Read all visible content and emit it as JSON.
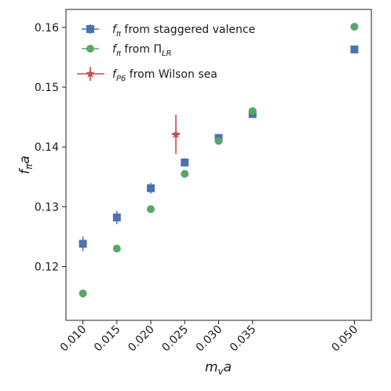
{
  "chart_data": {
    "type": "scatter",
    "title": "",
    "xlabel": "m_v a",
    "ylabel": "f_π a",
    "xlim": [
      0.0075,
      0.0525
    ],
    "ylim": [
      0.111,
      0.163
    ],
    "x_ticks": [
      0.01,
      0.015,
      0.02,
      0.025,
      0.03,
      0.035,
      0.05
    ],
    "x_tick_labels": [
      "0.010",
      "0.015",
      "0.020",
      "0.025",
      "0.030",
      "0.035",
      "0.050"
    ],
    "y_ticks": [
      0.12,
      0.13,
      0.14,
      0.15,
      0.16
    ],
    "y_tick_labels": [
      "0.12",
      "0.13",
      "0.14",
      "0.15",
      "0.16"
    ],
    "grid": false,
    "legend_position": "top-left",
    "series": [
      {
        "name": "f_π from staggered valence",
        "color": "#4c72b0",
        "marker": "square",
        "points": [
          {
            "x": 0.01,
            "y": 0.1238,
            "err": 0.0012
          },
          {
            "x": 0.015,
            "y": 0.1282,
            "err": 0.0011
          },
          {
            "x": 0.02,
            "y": 0.1331,
            "err": 0.0009
          },
          {
            "x": 0.025,
            "y": 0.1374,
            "err": 0.0007
          },
          {
            "x": 0.03,
            "y": 0.1415,
            "err": 0.0005
          },
          {
            "x": 0.035,
            "y": 0.1455,
            "err": 0.0004
          },
          {
            "x": 0.05,
            "y": 0.1563,
            "err": 0.0
          }
        ]
      },
      {
        "name": "f_π from Π_LR",
        "color": "#55a868",
        "marker": "circle",
        "points": [
          {
            "x": 0.01,
            "y": 0.1155,
            "err": 0.0
          },
          {
            "x": 0.015,
            "y": 0.123,
            "err": 0.0
          },
          {
            "x": 0.02,
            "y": 0.1296,
            "err": 0.0
          },
          {
            "x": 0.025,
            "y": 0.1355,
            "err": 0.0
          },
          {
            "x": 0.03,
            "y": 0.141,
            "err": 0.0
          },
          {
            "x": 0.035,
            "y": 0.146,
            "err": 0.0
          },
          {
            "x": 0.05,
            "y": 0.1601,
            "err": 0.0
          }
        ]
      },
      {
        "name": "f_P6 from Wilson sea",
        "color": "#c44e52",
        "marker": "star",
        "points": [
          {
            "x": 0.0237,
            "y": 0.1421,
            "err": 0.0033
          }
        ]
      }
    ]
  },
  "legend": {
    "items": [
      {
        "f": "f",
        "sub": "π",
        "rest": " from staggered valence"
      },
      {
        "f": "f",
        "sub": "π",
        "rest": " from Π",
        "rest_sub": "LR"
      },
      {
        "f": "f",
        "sub": "P6",
        "rest": " from Wilson sea"
      }
    ]
  },
  "axes": {
    "xlabel_main": "m",
    "xlabel_sub": "v",
    "xlabel_tail": "a",
    "ylabel_main": "f",
    "ylabel_sub": "π",
    "ylabel_tail": "a"
  }
}
